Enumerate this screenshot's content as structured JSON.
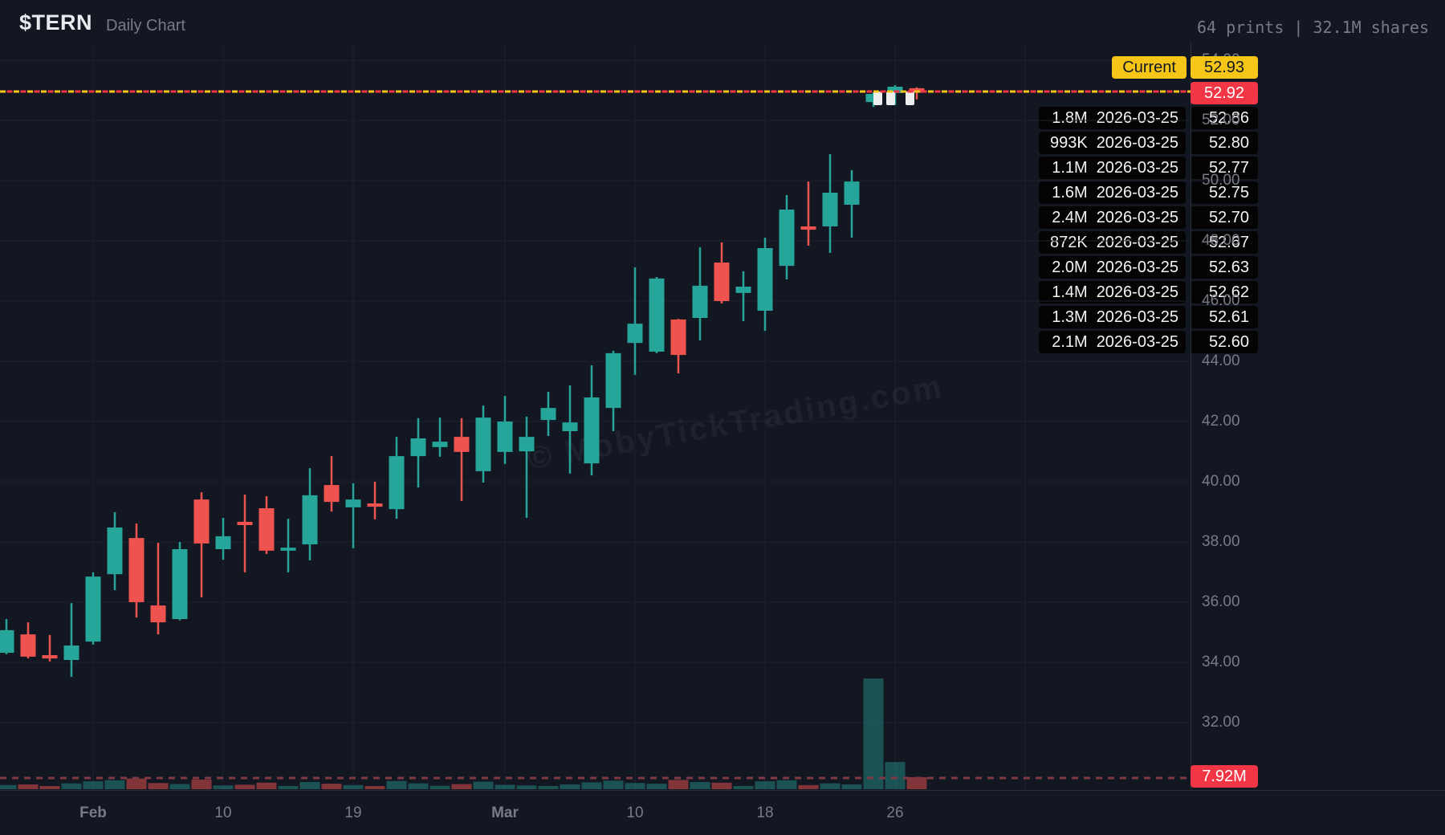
{
  "header": {
    "ticker": "$TERN",
    "subtitle": "Daily Chart",
    "prints_summary": "64 prints | 32.1M shares"
  },
  "current": {
    "label": "Current",
    "price": "52.93",
    "last": "52.92"
  },
  "volume_badge": {
    "label": "7.92M"
  },
  "prints": [
    {
      "size": "1.8M",
      "date": "2026-03-25",
      "price": "52.86"
    },
    {
      "size": "993K",
      "date": "2026-03-25",
      "price": "52.80"
    },
    {
      "size": "1.1M",
      "date": "2026-03-25",
      "price": "52.77"
    },
    {
      "size": "1.6M",
      "date": "2026-03-25",
      "price": "52.75"
    },
    {
      "size": "2.4M",
      "date": "2026-03-25",
      "price": "52.70"
    },
    {
      "size": "872K",
      "date": "2026-03-25",
      "price": "52.67"
    },
    {
      "size": "2.0M",
      "date": "2026-03-25",
      "price": "52.63"
    },
    {
      "size": "1.4M",
      "date": "2026-03-25",
      "price": "52.62"
    },
    {
      "size": "1.3M",
      "date": "2026-03-25",
      "price": "52.61"
    },
    {
      "size": "2.1M",
      "date": "2026-03-25",
      "price": "52.60"
    }
  ],
  "colors": {
    "background": "#131722",
    "up": "#26a69a",
    "down": "#ef5350",
    "grid": "#1d2230",
    "separator": "#2a2e39",
    "axis_text": "#787b86",
    "current_yellow": "#f5c518",
    "alert_red": "#f23645",
    "volume_line": "#803a43",
    "print_marker": "#ededed",
    "watermark": "rgba(180,190,210,0.07)"
  },
  "chart_data": {
    "type": "candlestick",
    "symbol": "$TERN",
    "timeframe": "Daily",
    "watermark": "© MobyTickTrading.com",
    "current_price": 52.93,
    "last_print_price": 52.92,
    "volume_threshold_m": 7.92,
    "total_day_volume_m": 32.1,
    "y_axis": {
      "ticks": [
        {
          "price": 54,
          "label": "54.00"
        },
        {
          "price": 52,
          "label": "52.00"
        },
        {
          "price": 50,
          "label": "50.00"
        },
        {
          "price": 48,
          "label": "48.00"
        },
        {
          "price": 46,
          "label": "46.00"
        },
        {
          "price": 44,
          "label": "44.00"
        },
        {
          "price": 42,
          "label": "42.00"
        },
        {
          "price": 40,
          "label": "40.00"
        },
        {
          "price": 38,
          "label": "38.00"
        },
        {
          "price": 36,
          "label": "36.00"
        },
        {
          "price": 34,
          "label": "34.00"
        },
        {
          "price": 32,
          "label": "32.00"
        }
      ],
      "gridline_prices": [
        54,
        52,
        50,
        48,
        46,
        44,
        42,
        40,
        38,
        36,
        34,
        32
      ]
    },
    "x_axis": {
      "labels": [
        {
          "text": "Feb",
          "index": 4,
          "bold": true
        },
        {
          "text": "10",
          "index": 10,
          "bold": false
        },
        {
          "text": "19",
          "index": 16,
          "bold": false
        },
        {
          "text": "Mar",
          "index": 23,
          "bold": true
        },
        {
          "text": "10",
          "index": 29,
          "bold": false
        },
        {
          "text": "18",
          "index": 35,
          "bold": false
        },
        {
          "text": "26",
          "index": 41,
          "bold": false
        }
      ],
      "extra_gridline_indices": [
        47
      ]
    },
    "print_marker_candle_indices": [
      40,
      41,
      42
    ],
    "candles": [
      {
        "o": 34.32,
        "h": 35.44,
        "l": 34.27,
        "c": 35.07,
        "v": 1.2
      },
      {
        "o": 34.93,
        "h": 35.33,
        "l": 34.13,
        "c": 34.19,
        "v": 1.4
      },
      {
        "o": 34.24,
        "h": 34.91,
        "l": 34.03,
        "c": 34.13,
        "v": 0.9
      },
      {
        "o": 34.08,
        "h": 35.97,
        "l": 33.52,
        "c": 34.56,
        "v": 1.7
      },
      {
        "o": 34.69,
        "h": 36.99,
        "l": 34.59,
        "c": 36.85,
        "v": 2.3
      },
      {
        "o": 36.93,
        "h": 38.99,
        "l": 36.4,
        "c": 38.48,
        "v": 2.6
      },
      {
        "o": 38.13,
        "h": 38.61,
        "l": 35.49,
        "c": 36.0,
        "v": 3.1
      },
      {
        "o": 35.89,
        "h": 37.97,
        "l": 34.93,
        "c": 35.33,
        "v": 1.8
      },
      {
        "o": 35.44,
        "h": 38.0,
        "l": 35.4,
        "c": 37.76,
        "v": 1.5
      },
      {
        "o": 39.41,
        "h": 39.65,
        "l": 36.16,
        "c": 37.95,
        "v": 2.8
      },
      {
        "o": 37.76,
        "h": 38.8,
        "l": 37.41,
        "c": 38.19,
        "v": 1.1
      },
      {
        "o": 38.67,
        "h": 39.57,
        "l": 36.99,
        "c": 38.56,
        "v": 1.3
      },
      {
        "o": 39.12,
        "h": 39.52,
        "l": 37.6,
        "c": 37.71,
        "v": 1.9
      },
      {
        "o": 37.71,
        "h": 38.77,
        "l": 36.99,
        "c": 37.81,
        "v": 0.8
      },
      {
        "o": 37.92,
        "h": 40.45,
        "l": 37.39,
        "c": 39.55,
        "v": 2.1
      },
      {
        "o": 39.89,
        "h": 40.85,
        "l": 39.01,
        "c": 39.33,
        "v": 1.6
      },
      {
        "o": 39.15,
        "h": 39.95,
        "l": 37.79,
        "c": 39.41,
        "v": 1.2
      },
      {
        "o": 39.28,
        "h": 40.0,
        "l": 38.75,
        "c": 39.17,
        "v": 0.9
      },
      {
        "o": 39.09,
        "h": 41.49,
        "l": 38.77,
        "c": 40.85,
        "v": 2.4
      },
      {
        "o": 40.85,
        "h": 42.11,
        "l": 39.81,
        "c": 41.44,
        "v": 1.7
      },
      {
        "o": 41.15,
        "h": 42.13,
        "l": 40.83,
        "c": 41.33,
        "v": 1.0
      },
      {
        "o": 41.49,
        "h": 42.11,
        "l": 39.36,
        "c": 40.99,
        "v": 1.5
      },
      {
        "o": 40.35,
        "h": 42.53,
        "l": 39.97,
        "c": 42.13,
        "v": 2.2
      },
      {
        "o": 40.99,
        "h": 42.85,
        "l": 40.59,
        "c": 42.0,
        "v": 1.3
      },
      {
        "o": 41.01,
        "h": 42.16,
        "l": 38.8,
        "c": 41.49,
        "v": 1.1
      },
      {
        "o": 42.05,
        "h": 42.99,
        "l": 41.52,
        "c": 42.45,
        "v": 0.9
      },
      {
        "o": 41.68,
        "h": 43.2,
        "l": 40.27,
        "c": 41.97,
        "v": 1.4
      },
      {
        "o": 40.61,
        "h": 43.87,
        "l": 40.21,
        "c": 42.8,
        "v": 2.0
      },
      {
        "o": 42.45,
        "h": 44.35,
        "l": 41.68,
        "c": 44.27,
        "v": 2.5
      },
      {
        "o": 44.61,
        "h": 47.12,
        "l": 43.55,
        "c": 45.25,
        "v": 1.8
      },
      {
        "o": 44.32,
        "h": 46.8,
        "l": 44.27,
        "c": 46.75,
        "v": 1.6
      },
      {
        "o": 45.39,
        "h": 45.41,
        "l": 43.6,
        "c": 44.21,
        "v": 2.7
      },
      {
        "o": 45.44,
        "h": 47.79,
        "l": 44.69,
        "c": 46.51,
        "v": 2.1
      },
      {
        "o": 47.28,
        "h": 47.95,
        "l": 45.92,
        "c": 46.0,
        "v": 1.9
      },
      {
        "o": 46.27,
        "h": 46.99,
        "l": 45.33,
        "c": 46.48,
        "v": 0.9
      },
      {
        "o": 45.68,
        "h": 48.11,
        "l": 45.01,
        "c": 47.76,
        "v": 2.3
      },
      {
        "o": 47.17,
        "h": 49.52,
        "l": 46.72,
        "c": 49.04,
        "v": 2.6
      },
      {
        "o": 48.48,
        "h": 49.97,
        "l": 47.84,
        "c": 48.37,
        "v": 1.2
      },
      {
        "o": 48.48,
        "h": 50.88,
        "l": 47.6,
        "c": 49.6,
        "v": 1.7
      },
      {
        "o": 49.2,
        "h": 50.35,
        "l": 48.11,
        "c": 49.97,
        "v": 1.4
      },
      {
        "o": 52.61,
        "h": 52.93,
        "l": 52.45,
        "c": 52.88,
        "v": 32.1
      },
      {
        "o": 52.91,
        "h": 53.17,
        "l": 52.51,
        "c": 53.12,
        "v": 7.9
      },
      {
        "o": 53.07,
        "h": 53.1,
        "l": 52.7,
        "c": 52.92,
        "v": 3.5
      }
    ]
  }
}
